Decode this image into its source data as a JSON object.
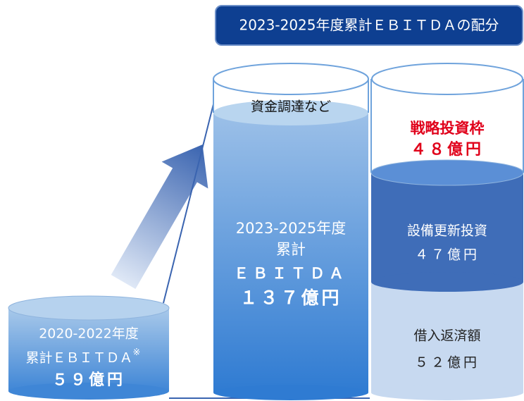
{
  "header": {
    "title": "2023-2025年度累計ＥＢＩＴＤＡの配分"
  },
  "cylinders": [
    {
      "lines": [
        "2020-2022年度",
        "累計ＥＢＩＴＤＡ",
        "５９億円"
      ],
      "note": "※"
    },
    {
      "top_label": "資金調達など",
      "lines": [
        "2023-2025年度",
        "累計",
        "ＥＢＩＴＤＡ",
        "１３７億円"
      ]
    },
    {
      "segments": [
        {
          "lines": [
            "戦略投資枠",
            "４８億円"
          ]
        },
        {
          "lines": [
            "設備更新投資",
            "４７億円"
          ]
        },
        {
          "lines": [
            "借入返済額",
            "５２億円"
          ]
        }
      ]
    }
  ]
}
